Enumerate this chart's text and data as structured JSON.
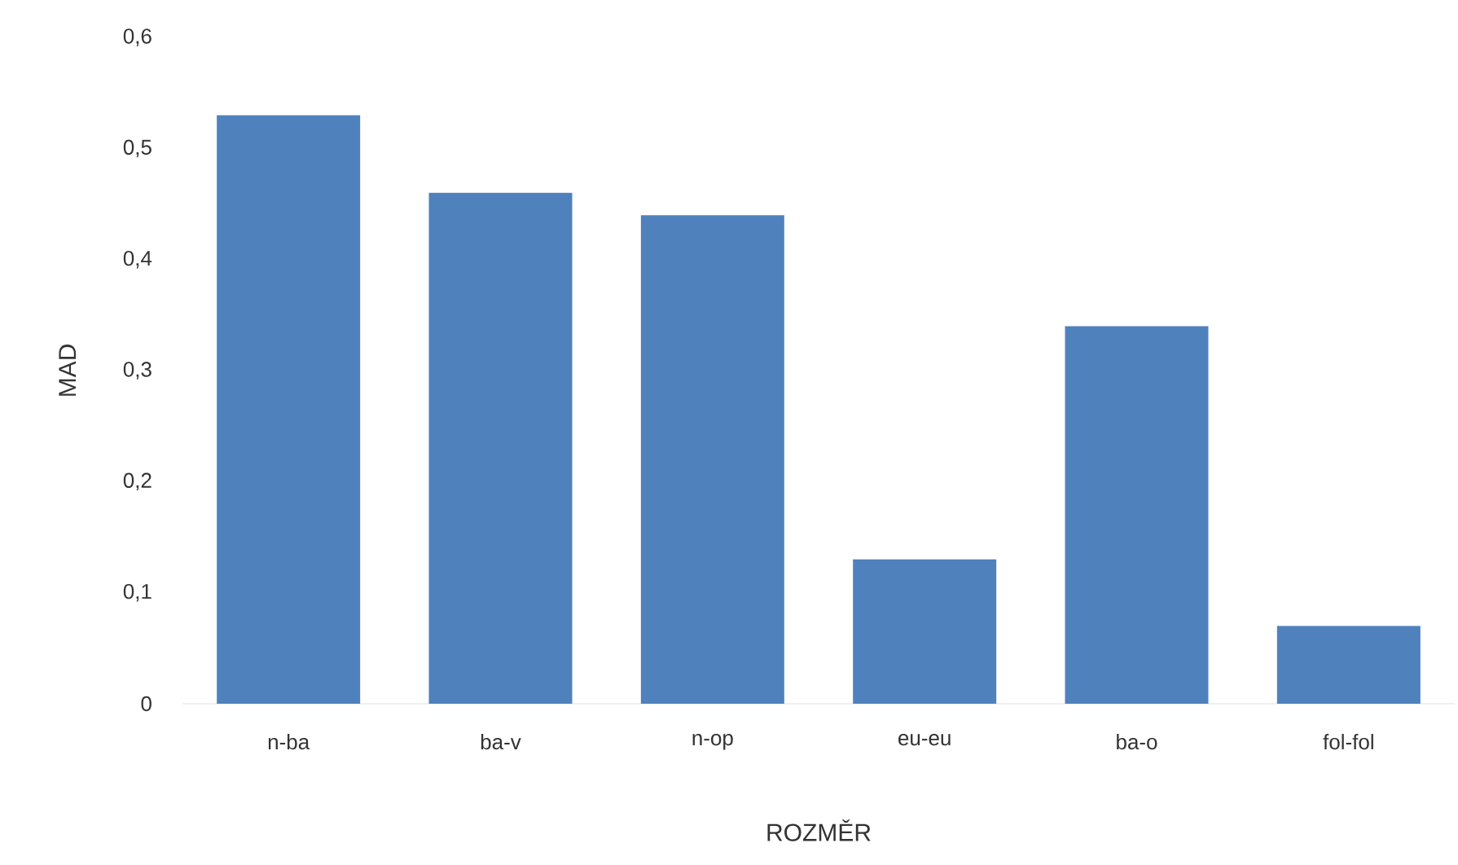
{
  "chart_data": {
    "type": "bar",
    "xlabel": "ROZMĚR",
    "ylabel": "MAD",
    "categories": [
      "n-ba",
      "ba-v",
      "n-op",
      "eu-eu",
      "ba-o",
      "fol-fol"
    ],
    "values": [
      0.53,
      0.46,
      0.44,
      0.13,
      0.34,
      0.07
    ],
    "color": "#4f81bd",
    "ylim": [
      0,
      0.6
    ],
    "yticks": [
      0,
      {
        "value": 0.1,
        "label": "0,1"
      },
      {
        "value": 0.2,
        "label": "0,2"
      },
      {
        "value": 0.3,
        "label": "0,3"
      },
      {
        "value": 0.4,
        "label": "0,4"
      },
      {
        "value": 0.5,
        "label": "0,5"
      },
      {
        "value": 0.6,
        "label": "0,6"
      }
    ]
  }
}
